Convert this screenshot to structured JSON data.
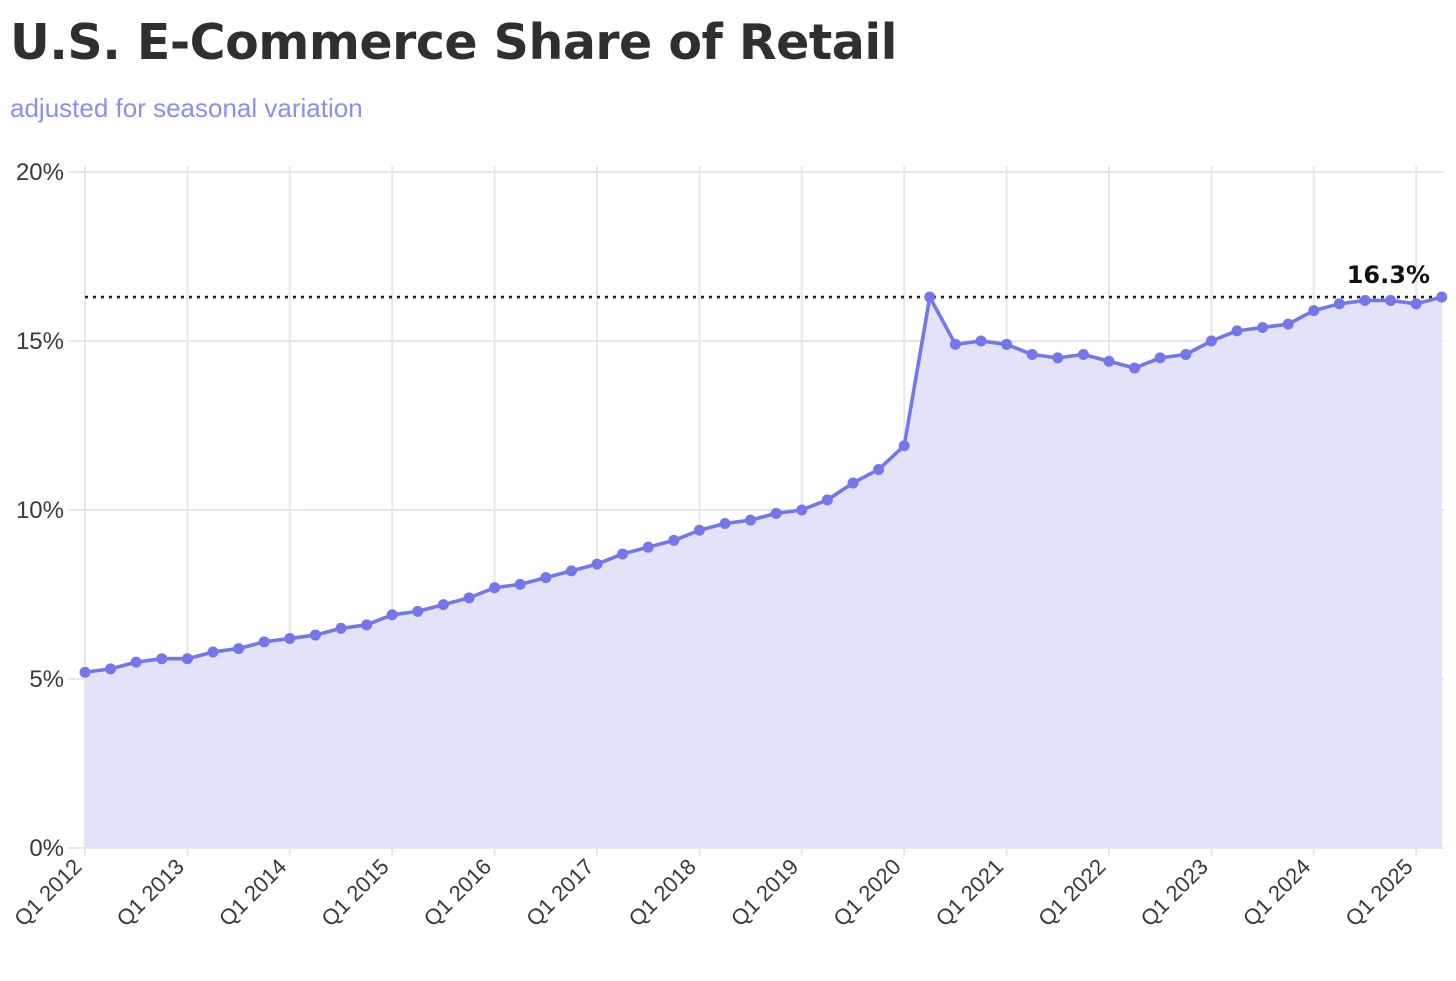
{
  "chart_data": {
    "type": "area",
    "title": "U.S. E-Commerce Share of Retail",
    "subtitle": "adjusted for seasonal variation",
    "xlabel": "",
    "ylabel": "",
    "unit": "%",
    "ylim": [
      0,
      20
    ],
    "y_ticks": [
      0,
      5,
      10,
      15,
      20
    ],
    "y_tick_labels": [
      "0%",
      "5%",
      "10%",
      "15%",
      "20%"
    ],
    "x_tick_labels": [
      "Q1 2012",
      "Q1 2013",
      "Q1 2014",
      "Q1 2015",
      "Q1 2016",
      "Q1 2017",
      "Q1 2018",
      "Q1 2019",
      "Q1 2020",
      "Q1 2021",
      "Q1 2022",
      "Q1 2023",
      "Q1 2024",
      "Q1 2025"
    ],
    "grid": true,
    "x": [
      "Q1 2012",
      "Q2 2012",
      "Q3 2012",
      "Q4 2012",
      "Q1 2013",
      "Q2 2013",
      "Q3 2013",
      "Q4 2013",
      "Q1 2014",
      "Q2 2014",
      "Q3 2014",
      "Q4 2014",
      "Q1 2015",
      "Q2 2015",
      "Q3 2015",
      "Q4 2015",
      "Q1 2016",
      "Q2 2016",
      "Q3 2016",
      "Q4 2016",
      "Q1 2017",
      "Q2 2017",
      "Q3 2017",
      "Q4 2017",
      "Q1 2018",
      "Q2 2018",
      "Q3 2018",
      "Q4 2018",
      "Q1 2019",
      "Q2 2019",
      "Q3 2019",
      "Q4 2019",
      "Q1 2020",
      "Q2 2020",
      "Q3 2020",
      "Q4 2020",
      "Q1 2021",
      "Q2 2021",
      "Q3 2021",
      "Q4 2021",
      "Q1 2022",
      "Q2 2022",
      "Q3 2022",
      "Q4 2022",
      "Q1 2023",
      "Q2 2023",
      "Q3 2023",
      "Q4 2023",
      "Q1 2024",
      "Q2 2024",
      "Q3 2024",
      "Q4 2024",
      "Q1 2025",
      "Q2 2025"
    ],
    "series": [
      {
        "values": [
          5.2,
          5.3,
          5.5,
          5.6,
          5.6,
          5.8,
          5.9,
          6.1,
          6.2,
          6.3,
          6.5,
          6.6,
          6.9,
          7.0,
          7.2,
          7.4,
          7.7,
          7.8,
          8.0,
          8.2,
          8.4,
          8.7,
          8.9,
          9.1,
          9.4,
          9.6,
          9.7,
          9.9,
          10.0,
          10.3,
          10.8,
          11.2,
          11.9,
          16.3,
          14.9,
          15.0,
          14.9,
          14.6,
          14.5,
          14.6,
          14.4,
          14.2,
          14.5,
          14.6,
          15.0,
          15.3,
          15.4,
          15.5,
          15.9,
          16.1,
          16.2,
          16.2,
          16.1,
          16.3
        ]
      }
    ],
    "reference_line": {
      "value": 16.3,
      "style": "dotted"
    },
    "peak_label": "16.3%",
    "colors": {
      "line": "#7277ec",
      "area": "#e2e3f9",
      "grid": "#e6e6ee",
      "subtitle": "#8a8ef0",
      "reference_line": "#222222"
    }
  }
}
